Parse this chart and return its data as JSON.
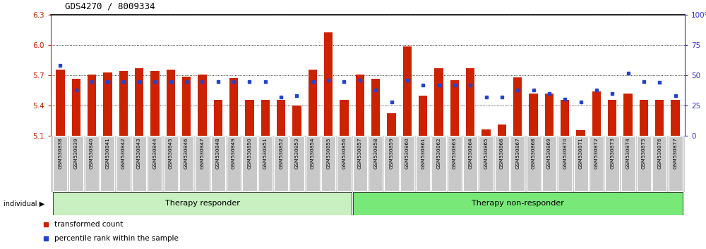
{
  "title": "GDS4270 / 8009334",
  "ylim_left": [
    5.1,
    6.3
  ],
  "ylim_right": [
    0,
    100
  ],
  "yticks_left": [
    5.1,
    5.4,
    5.7,
    6.0,
    6.3
  ],
  "yticks_right": [
    0,
    25,
    50,
    75,
    100
  ],
  "samples": [
    "GSM530838",
    "GSM530839",
    "GSM530840",
    "GSM530841",
    "GSM530842",
    "GSM530843",
    "GSM530844",
    "GSM530845",
    "GSM530846",
    "GSM530847",
    "GSM530848",
    "GSM530849",
    "GSM530850",
    "GSM530851",
    "GSM530852",
    "GSM530853",
    "GSM530854",
    "GSM530855",
    "GSM530856",
    "GSM530857",
    "GSM530858",
    "GSM530859",
    "GSM530860",
    "GSM530861",
    "GSM530862",
    "GSM530863",
    "GSM530864",
    "GSM530865",
    "GSM530866",
    "GSM530867",
    "GSM530868",
    "GSM530869",
    "GSM530870",
    "GSM530871",
    "GSM530872",
    "GSM530873",
    "GSM530874",
    "GSM530875",
    "GSM530876",
    "GSM530877"
  ],
  "bar_values": [
    5.755,
    5.665,
    5.71,
    5.73,
    5.74,
    5.77,
    5.745,
    5.755,
    5.685,
    5.705,
    5.455,
    5.67,
    5.455,
    5.455,
    5.455,
    5.4,
    5.76,
    6.13,
    5.455,
    5.705,
    5.665,
    5.32,
    5.99,
    5.495,
    5.77,
    5.65,
    5.77,
    5.16,
    5.21,
    5.68,
    5.52,
    5.52,
    5.455,
    5.155,
    5.54,
    5.455,
    5.52,
    5.455,
    5.455,
    5.455
  ],
  "percentile_values": [
    58,
    38,
    45,
    45,
    45,
    45,
    45,
    45,
    45,
    45,
    45,
    45,
    45,
    45,
    32,
    33,
    45,
    46,
    45,
    46,
    38,
    28,
    46,
    42,
    42,
    42,
    42,
    32,
    32,
    38,
    38,
    35,
    30,
    28,
    38,
    35,
    52,
    45,
    44,
    33
  ],
  "groups": [
    {
      "label": "Therapy responder",
      "start": 0,
      "end": 19,
      "color": "#c8f0c0"
    },
    {
      "label": "Therapy non-responder",
      "start": 19,
      "end": 40,
      "color": "#78e878"
    }
  ],
  "bar_color": "#cc2200",
  "percentile_color": "#2244cc",
  "background_color": "#ffffff",
  "plot_bg_color": "#ffffff",
  "tick_label_bg": "#c8c8c8",
  "tick_label_border": "#ffffff",
  "left_axis_color": "#cc2200",
  "right_axis_color": "#3333cc"
}
